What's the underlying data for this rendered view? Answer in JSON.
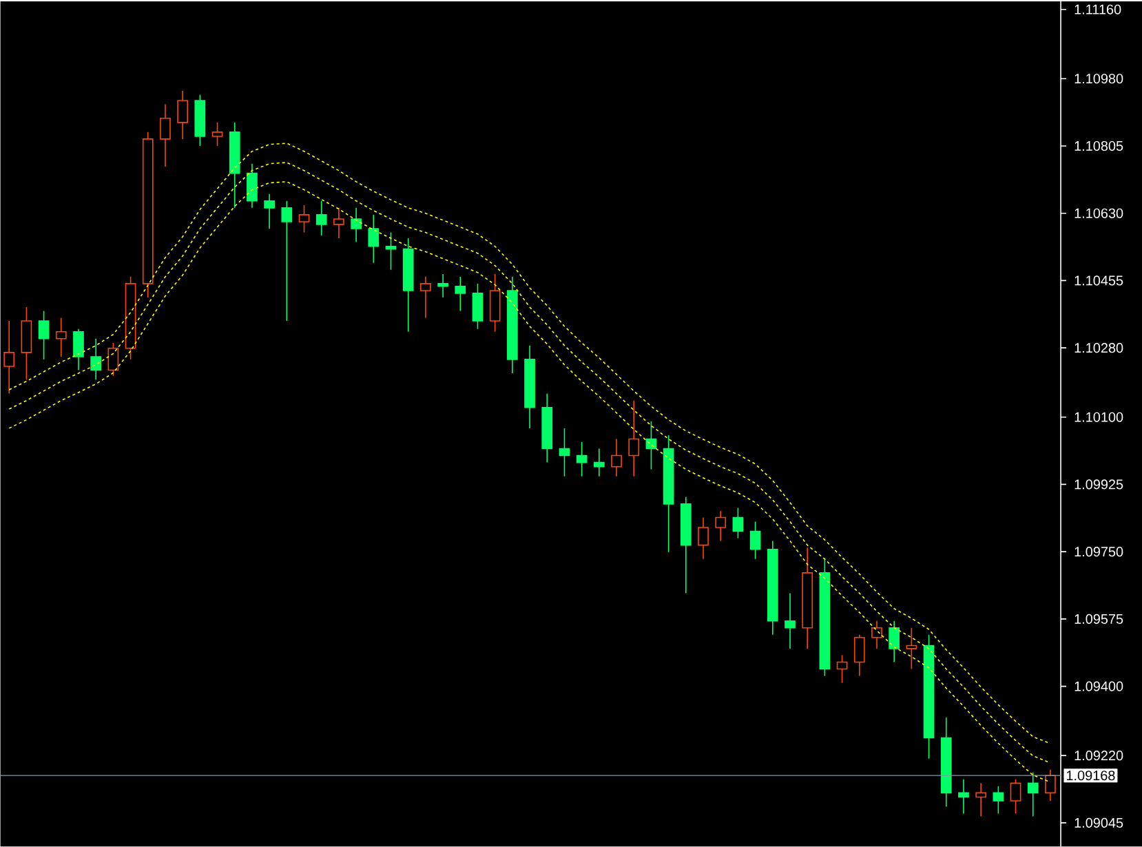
{
  "chart_data": {
    "type": "candlestick",
    "categories": [
      null,
      null,
      null,
      null,
      null,
      null,
      null,
      null,
      null,
      null,
      null,
      null,
      null,
      null,
      null,
      null,
      null,
      null,
      null,
      null,
      null,
      null,
      null,
      null,
      null,
      null,
      null,
      null,
      null,
      null,
      null,
      null,
      null,
      null,
      null,
      null,
      null,
      null,
      null,
      null,
      null,
      null,
      null,
      null,
      null,
      null,
      null,
      null,
      null,
      null,
      null,
      null,
      null,
      null,
      null,
      null,
      null,
      null,
      null,
      null,
      null
    ],
    "ohlc": [
      [
        1.10232,
        1.1035,
        1.10161,
        1.10268
      ],
      [
        1.10268,
        1.10386,
        1.10197,
        1.1035
      ],
      [
        1.1035,
        1.10376,
        1.1025,
        1.10304
      ],
      [
        1.10304,
        1.10358,
        1.10257,
        1.10322
      ],
      [
        1.10322,
        1.10329,
        1.10222,
        1.10257
      ],
      [
        1.10257,
        1.10304,
        1.10197,
        1.10222
      ],
      [
        1.10222,
        1.10293,
        1.10207,
        1.10279
      ],
      [
        1.10279,
        1.10465,
        1.1025,
        1.10447
      ],
      [
        1.10447,
        1.10841,
        1.10411,
        1.10823
      ],
      [
        1.10823,
        1.10913,
        1.10751,
        1.10877
      ],
      [
        1.10866,
        1.10948,
        1.10823,
        1.10923
      ],
      [
        1.10923,
        1.10938,
        1.10805,
        1.1083
      ],
      [
        1.1083,
        1.10866,
        1.10805,
        1.10841
      ],
      [
        1.10841,
        1.10866,
        1.10644,
        1.10734
      ],
      [
        1.10734,
        1.10759,
        1.10644,
        1.10662
      ],
      [
        1.10662,
        1.1068,
        1.1059,
        1.10644
      ],
      [
        1.10644,
        1.10662,
        1.1035,
        1.10608
      ],
      [
        1.10608,
        1.10651,
        1.1058,
        1.10626
      ],
      [
        1.10626,
        1.10662,
        1.10572,
        1.10601
      ],
      [
        1.10601,
        1.10644,
        1.10565,
        1.10615
      ],
      [
        1.10615,
        1.10644,
        1.10555,
        1.1059
      ],
      [
        1.1059,
        1.10626,
        1.10501,
        1.10544
      ],
      [
        1.10544,
        1.1058,
        1.10483,
        1.10537
      ],
      [
        1.10537,
        1.10565,
        1.10322,
        1.10429
      ],
      [
        1.10429,
        1.10465,
        1.10358,
        1.10447
      ],
      [
        1.10447,
        1.10472,
        1.10411,
        1.1044
      ],
      [
        1.1044,
        1.10465,
        1.10376,
        1.10422
      ],
      [
        1.10422,
        1.10447,
        1.10329,
        1.1035
      ],
      [
        1.1035,
        1.10472,
        1.10322,
        1.10429
      ],
      [
        1.10429,
        1.10465,
        1.10214,
        1.1025
      ],
      [
        1.1025,
        1.10286,
        1.10071,
        1.10125
      ],
      [
        1.10125,
        1.10161,
        1.09982,
        1.10018
      ],
      [
        1.10018,
        1.10071,
        1.09946,
        1.1
      ],
      [
        1.1,
        1.10035,
        1.09946,
        1.09982
      ],
      [
        1.09982,
        1.10018,
        1.09946,
        1.09971
      ],
      [
        1.09971,
        1.10043,
        1.09946,
        1.1
      ],
      [
        1.1,
        1.10143,
        1.09946,
        1.10043
      ],
      [
        1.10043,
        1.10089,
        1.09964,
        1.10018
      ],
      [
        1.10018,
        1.10053,
        1.09749,
        1.09874
      ],
      [
        1.09874,
        1.09892,
        1.09642,
        1.09767
      ],
      [
        1.09767,
        1.09839,
        1.09731,
        1.09813
      ],
      [
        1.09813,
        1.09856,
        1.09778,
        1.09839
      ],
      [
        1.09839,
        1.09864,
        1.09785,
        1.09803
      ],
      [
        1.09803,
        1.09828,
        1.09731,
        1.09756
      ],
      [
        1.09756,
        1.09778,
        1.09534,
        1.0957
      ],
      [
        1.0957,
        1.09642,
        1.09498,
        1.09552
      ],
      [
        1.09552,
        1.0976,
        1.09498,
        1.09695
      ],
      [
        1.09695,
        1.09731,
        1.09427,
        1.09445
      ],
      [
        1.09445,
        1.09481,
        1.09409,
        1.09463
      ],
      [
        1.09463,
        1.09534,
        1.09427,
        1.09527
      ],
      [
        1.09527,
        1.0957,
        1.09498,
        1.09552
      ],
      [
        1.09552,
        1.0957,
        1.09463,
        1.09498
      ],
      [
        1.09498,
        1.09552,
        1.09445,
        1.09506
      ],
      [
        1.09506,
        1.09534,
        1.09212,
        1.09266
      ],
      [
        1.09266,
        1.09319,
        1.09087,
        1.09123
      ],
      [
        1.09123,
        1.09158,
        1.09069,
        1.09112
      ],
      [
        1.09112,
        1.09148,
        1.09062,
        1.09123
      ],
      [
        1.09123,
        1.0914,
        1.09069,
        1.09102
      ],
      [
        1.09102,
        1.09158,
        1.09069,
        1.09148
      ],
      [
        1.09148,
        1.09176,
        1.09062,
        1.09123
      ],
      [
        1.09123,
        1.09183,
        1.09102,
        1.09168
      ]
    ],
    "colors": [
      "#ff4500",
      "#ff4500",
      "#00ff66",
      "#ff4500",
      "#00ff66",
      "#00ff66",
      "#ff4500",
      "#ff4500",
      "#ff4500",
      "#ff4500",
      "#ff4500",
      "#00ff66",
      "#ff4500",
      "#00ff66",
      "#00ff66",
      "#00ff66",
      "#00ff66",
      "#ff4500",
      "#00ff66",
      "#ff4500",
      "#00ff66",
      "#00ff66",
      "#00ff66",
      "#00ff66",
      "#ff4500",
      "#00ff66",
      "#00ff66",
      "#00ff66",
      "#ff4500",
      "#00ff66",
      "#00ff66",
      "#00ff66",
      "#00ff66",
      "#00ff66",
      "#00ff66",
      "#ff4500",
      "#ff4500",
      "#00ff66",
      "#00ff66",
      "#00ff66",
      "#ff4500",
      "#ff4500",
      "#00ff66",
      "#00ff66",
      "#00ff66",
      "#00ff66",
      "#ff4500",
      "#00ff66",
      "#ff4500",
      "#ff4500",
      "#ff4500",
      "#00ff66",
      "#ff4500",
      "#00ff66",
      "#00ff66",
      "#00ff66",
      "#ff4500",
      "#00ff66",
      "#ff4500",
      "#00ff66",
      "#ff4500"
    ],
    "series": [
      {
        "type": "line",
        "color": "#ffff00",
        "values": [
          1.10171,
          1.10193,
          1.10218,
          1.10243,
          1.10264,
          1.10286,
          1.10315,
          1.10372,
          1.10443,
          1.10515,
          1.10569,
          1.1064,
          1.10694,
          1.10748,
          1.10791,
          1.10809,
          1.10812,
          1.10791,
          1.10766,
          1.10741,
          1.10712,
          1.10687,
          1.10665,
          1.10644,
          1.1063,
          1.10612,
          1.10594,
          1.10576,
          1.10544,
          1.10497,
          1.10436,
          1.1039,
          1.10336,
          1.10293,
          1.10254,
          1.10211,
          1.10168,
          1.10128,
          1.10093,
          1.10064,
          1.10042,
          1.10021,
          1.10003,
          1.09978,
          1.09935,
          1.09878,
          1.09817,
          1.09781,
          1.09735,
          1.09692,
          1.09645,
          1.09602,
          1.09577,
          1.09548,
          1.09495,
          1.09448,
          1.09398,
          1.09352,
          1.09309,
          1.09269,
          1.09251
        ]
      },
      {
        "type": "line",
        "color": "#ffff00",
        "values": [
          1.10121,
          1.10143,
          1.10168,
          1.10193,
          1.10214,
          1.10236,
          1.10265,
          1.10322,
          1.10393,
          1.10465,
          1.10519,
          1.1059,
          1.10644,
          1.10698,
          1.10741,
          1.10759,
          1.10762,
          1.10741,
          1.10716,
          1.10691,
          1.10662,
          1.10637,
          1.10615,
          1.10594,
          1.1058,
          1.10562,
          1.10544,
          1.10526,
          1.10494,
          1.10447,
          1.10386,
          1.1034,
          1.10286,
          1.10243,
          1.10204,
          1.10161,
          1.10118,
          1.10078,
          1.10043,
          1.10014,
          1.09992,
          1.09971,
          1.09953,
          1.09928,
          1.09885,
          1.09828,
          1.09767,
          1.09731,
          1.09685,
          1.09642,
          1.09595,
          1.09552,
          1.09527,
          1.09498,
          1.09445,
          1.09398,
          1.09348,
          1.09302,
          1.09259,
          1.09219,
          1.09201
        ]
      },
      {
        "type": "line",
        "color": "#ffff00",
        "values": [
          1.10071,
          1.10093,
          1.10118,
          1.10143,
          1.10164,
          1.10186,
          1.10215,
          1.10272,
          1.10343,
          1.10415,
          1.10469,
          1.1054,
          1.10594,
          1.10648,
          1.10691,
          1.10709,
          1.10712,
          1.10691,
          1.10666,
          1.10641,
          1.10612,
          1.10587,
          1.10565,
          1.10544,
          1.1053,
          1.10512,
          1.10494,
          1.10476,
          1.10444,
          1.10397,
          1.10336,
          1.1029,
          1.10236,
          1.10193,
          1.10154,
          1.10111,
          1.10068,
          1.10028,
          1.09993,
          1.09964,
          1.09942,
          1.09921,
          1.09903,
          1.09878,
          1.09835,
          1.09778,
          1.09717,
          1.09681,
          1.09635,
          1.09592,
          1.09545,
          1.09502,
          1.09477,
          1.09448,
          1.09395,
          1.09348,
          1.09298,
          1.09252,
          1.09209,
          1.09169,
          1.09151
        ]
      }
    ],
    "line_style": "dashed",
    "marker": "none",
    "grid": false,
    "tick_labels": "y",
    "ylim": [
      1.08983,
      1.11181
    ],
    "yticks": [
      {
        "value": 1.1116,
        "label": "1.11160"
      },
      {
        "value": 1.1098,
        "label": "1.10980"
      },
      {
        "value": 1.10805,
        "label": "1.10805"
      },
      {
        "value": 1.1063,
        "label": "1.10630"
      },
      {
        "value": 1.10455,
        "label": "1.10455"
      },
      {
        "value": 1.1028,
        "label": "1.10280"
      },
      {
        "value": 1.101,
        "label": "1.10100"
      },
      {
        "value": 1.09925,
        "label": "1.09925"
      },
      {
        "value": 1.0975,
        "label": "1.09750"
      },
      {
        "value": 1.09575,
        "label": "1.09575"
      },
      {
        "value": 1.094,
        "label": "1.09400"
      },
      {
        "value": 1.0922,
        "label": "1.09220"
      },
      {
        "value": 1.09045,
        "label": "1.09045"
      }
    ],
    "ref_lines": [
      {
        "axis": "y",
        "value": 1.09168,
        "label": "1.09168",
        "color": "#8899aa"
      }
    ]
  }
}
